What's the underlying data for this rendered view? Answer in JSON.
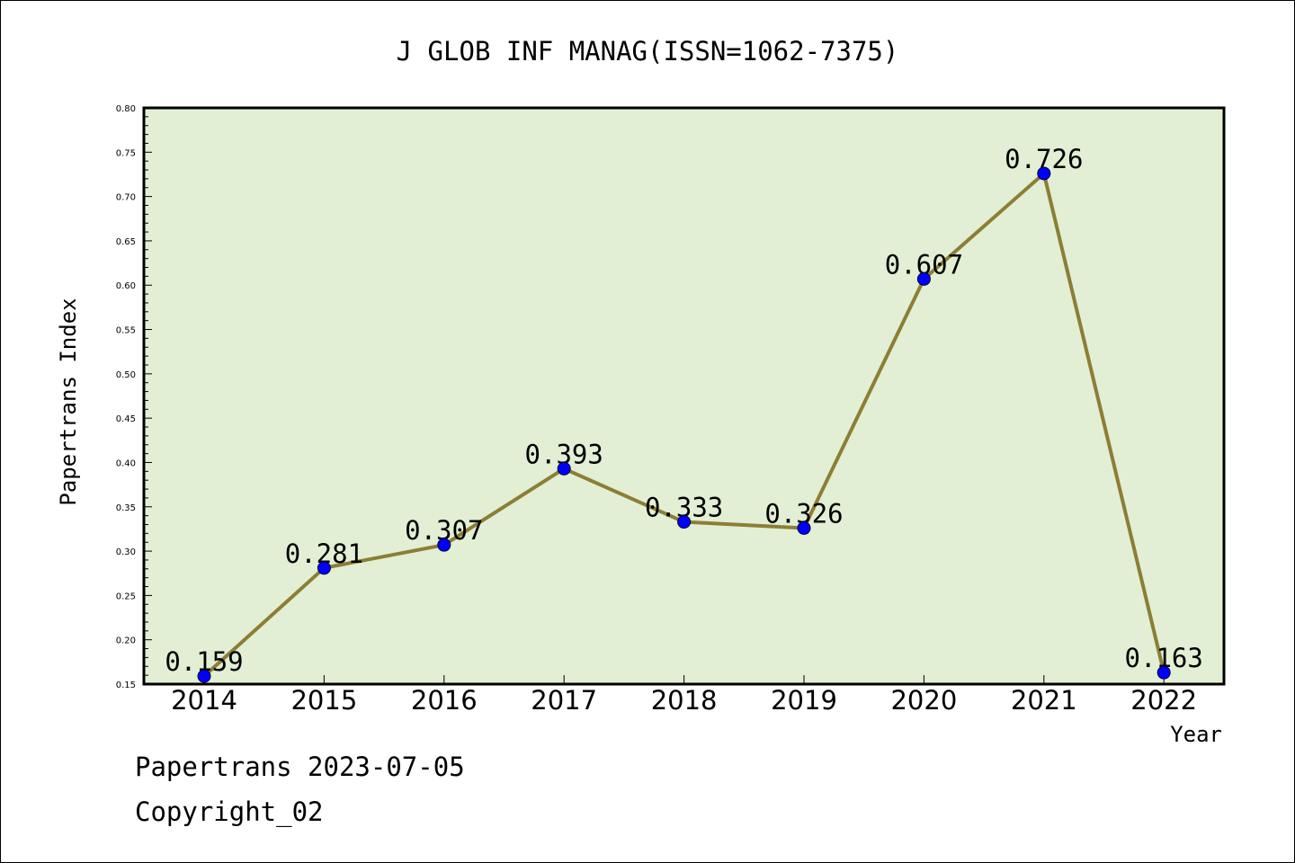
{
  "chart_data": {
    "type": "line",
    "title": "J GLOB INF MANAG(ISSN=1062-7375)",
    "xlabel": "Year",
    "ylabel": "Papertrans Index",
    "categories": [
      "2014",
      "2015",
      "2016",
      "2017",
      "2018",
      "2019",
      "2020",
      "2021",
      "2022"
    ],
    "values": [
      0.159,
      0.281,
      0.307,
      0.393,
      0.333,
      0.326,
      0.607,
      0.726,
      0.163
    ],
    "data_labels": [
      "0.159",
      "0.281",
      "0.307",
      "0.393",
      "0.333",
      "0.326",
      "0.607",
      "0.726",
      "0.163"
    ],
    "ylim": [
      0.15,
      0.8
    ],
    "yticks": [
      "0.15",
      "0.20",
      "0.25",
      "0.30",
      "0.35",
      "0.40",
      "0.45",
      "0.50",
      "0.55",
      "0.60",
      "0.65",
      "0.70",
      "0.75",
      "0.80"
    ],
    "grid": false,
    "colors": {
      "plot_background": "#e2efd5",
      "line": "#8c7e35",
      "marker": "#0000ff"
    }
  },
  "footer": {
    "date_line": "Papertrans 2023-07-05",
    "copyright": "Copyright_02"
  }
}
